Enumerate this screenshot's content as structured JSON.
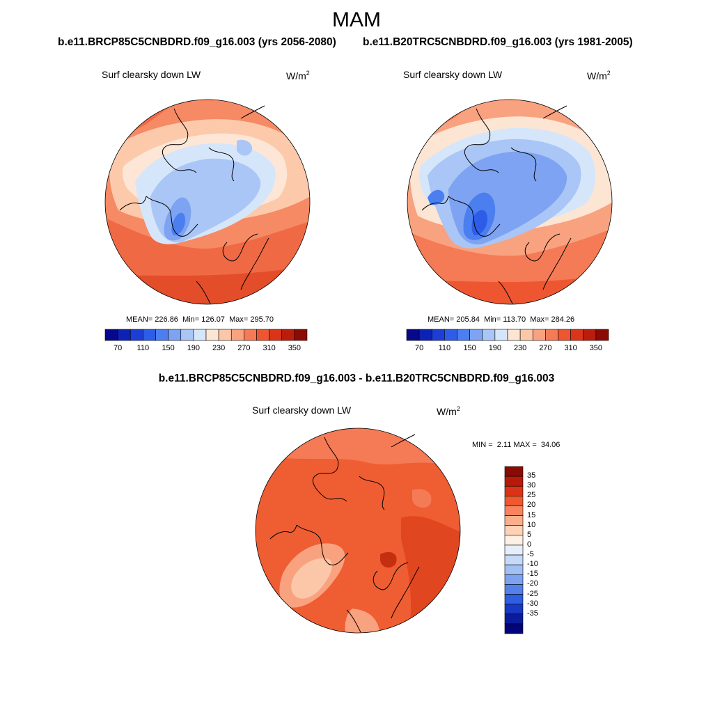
{
  "figure": {
    "season": "MAM",
    "variable": "Surf clearsky down LW",
    "units_base": "W/m",
    "units_exp": "2"
  },
  "panels": [
    {
      "case": "b.e11.BRCP85C5CNBDRD.f09_g16.003 (yrs 2056-2080)",
      "mean_label": "MEAN=",
      "mean": "226.86",
      "min_label": "Min=",
      "min": "126.07",
      "max_label": "Max=",
      "max": "295.70"
    },
    {
      "case": "b.e11.B20TRC5CNBDRD.f09_g16.003 (yrs 1981-2005)",
      "mean_label": "MEAN=",
      "mean": "205.84",
      "min_label": "Min=",
      "min": "113.70",
      "max_label": "Max=",
      "max": "284.26"
    }
  ],
  "difference": {
    "title": "b.e11.BRCP85C5CNBDRD.f09_g16.003 - b.e11.B20TRC5CNBDRD.f09_g16.003",
    "min_label": "MIN =",
    "min": "2.11",
    "max_label": "MAX =",
    "max": "34.06"
  },
  "colorbars": {
    "absolute": {
      "colors": [
        "#08088c",
        "#0d22b4",
        "#1c3ed7",
        "#2d5ce8",
        "#4b7eee",
        "#7da3f2",
        "#aac6f6",
        "#d6e6fa",
        "#fde5d3",
        "#fcc7a8",
        "#f9a27f",
        "#f57a56",
        "#ee5632",
        "#dc3418",
        "#bb1d0d",
        "#8c0a04"
      ],
      "tick_labels": [
        "70",
        "110",
        "150",
        "190",
        "230",
        "270",
        "310",
        "350"
      ]
    },
    "difference": {
      "colors_top_to_bottom": [
        "#8c0a04",
        "#b81a0a",
        "#dc3318",
        "#f0582e",
        "#f7845e",
        "#fbae8c",
        "#fdd2b6",
        "#fdf0e4",
        "#e6eefb",
        "#c5d9f8",
        "#a3c0f4",
        "#7da2ef",
        "#557fe9",
        "#2e5ee2",
        "#1739c4",
        "#0a1c9c",
        "#03047a"
      ],
      "tick_labels": [
        "35",
        "30",
        "25",
        "20",
        "15",
        "10",
        "5",
        "0",
        "-5",
        "-10",
        "-15",
        "-20",
        "-25",
        "-30",
        "-35"
      ]
    }
  },
  "chart_data": [
    {
      "type": "heatmap",
      "projection": "north polar stereographic",
      "title": "b.e11.BRCP85C5CNBDRD.f09_g16.003 (yrs 2056-2080)",
      "variable": "Surf clearsky down LW",
      "units": "W/m2",
      "contour_levels": [
        70,
        90,
        110,
        130,
        150,
        170,
        190,
        210,
        230,
        250,
        270,
        290,
        310,
        330,
        350
      ],
      "stats": {
        "mean": 226.86,
        "min": 126.07,
        "max": 295.7
      }
    },
    {
      "type": "heatmap",
      "projection": "north polar stereographic",
      "title": "b.e11.B20TRC5CNBDRD.f09_g16.003 (yrs 1981-2005)",
      "variable": "Surf clearsky down LW",
      "units": "W/m2",
      "contour_levels": [
        70,
        90,
        110,
        130,
        150,
        170,
        190,
        210,
        230,
        250,
        270,
        290,
        310,
        330,
        350
      ],
      "stats": {
        "mean": 205.84,
        "min": 113.7,
        "max": 284.26
      }
    },
    {
      "type": "heatmap",
      "projection": "north polar stereographic",
      "title": "b.e11.BRCP85C5CNBDRD.f09_g16.003 - b.e11.B20TRC5CNBDRD.f09_g16.003",
      "variable": "Surf clearsky down LW",
      "units": "W/m2",
      "contour_levels": [
        -35,
        -30,
        -25,
        -20,
        -15,
        -10,
        -5,
        0,
        5,
        10,
        15,
        20,
        25,
        30,
        35
      ],
      "stats": {
        "min": 2.11,
        "max": 34.06
      }
    }
  ]
}
